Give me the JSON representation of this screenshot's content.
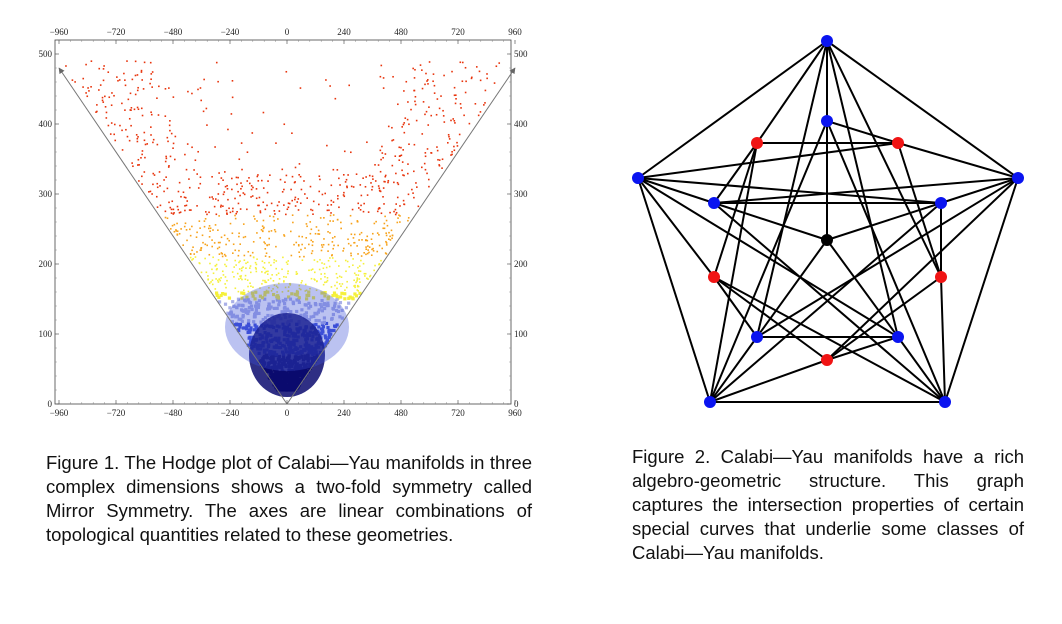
{
  "figure1": {
    "caption": "Figure 1. The Hodge plot of Calabi—Yau manifolds in three complex dimensions shows a two-fold symmetry called Mirror Symmetry. The axes are linear combinations of topological quantities related to these geometries.",
    "chart_data": {
      "type": "heatmap",
      "title": "",
      "xlabel": "",
      "ylabel": "",
      "xlim": [
        -960,
        960
      ],
      "ylim": [
        0,
        500
      ],
      "x_ticks": [
        "−960",
        "−720",
        "−480",
        "−240",
        "0",
        "240",
        "480",
        "720",
        "960"
      ],
      "y_ticks": [
        "0",
        "100",
        "200",
        "300",
        "400",
        "500"
      ],
      "x_tick_values": [
        -960,
        -720,
        -480,
        -240,
        0,
        240,
        480,
        720,
        960
      ],
      "y_tick_values": [
        0,
        100,
        200,
        300,
        400,
        500
      ],
      "mirror_axes": [
        {
          "from": [
            0,
            0
          ],
          "to": [
            -960,
            480
          ]
        },
        {
          "from": [
            0,
            0
          ],
          "to": [
            960,
            480
          ]
        }
      ],
      "density_colors": [
        "#0a0a6e",
        "#3d4fd8",
        "#aab0e8",
        "#f5f03a",
        "#f7a21a",
        "#e8340c"
      ]
    }
  },
  "figure2": {
    "caption": "Figure 2. Calabi—Yau manifolds have a rich algebro-geometric structure. This graph captures the intersection properties of certain special curves that underlie some classes of Calabi—Yau manifolds.",
    "graph": {
      "node_colors": {
        "blue": "#0a14f0",
        "red": "#f01414",
        "black": "#000000"
      },
      "nodes": [
        {
          "id": "O0",
          "color": "blue"
        },
        {
          "id": "O1",
          "color": "blue"
        },
        {
          "id": "O2",
          "color": "blue"
        },
        {
          "id": "O3",
          "color": "blue"
        },
        {
          "id": "O4",
          "color": "blue"
        },
        {
          "id": "P0",
          "color": "blue"
        },
        {
          "id": "P1",
          "color": "blue"
        },
        {
          "id": "P2",
          "color": "blue"
        },
        {
          "id": "P3",
          "color": "blue"
        },
        {
          "id": "P4",
          "color": "blue"
        },
        {
          "id": "R0",
          "color": "red"
        },
        {
          "id": "R1",
          "color": "red"
        },
        {
          "id": "R2",
          "color": "red"
        },
        {
          "id": "R3",
          "color": "red"
        },
        {
          "id": "R4",
          "color": "red"
        },
        {
          "id": "C",
          "color": "black"
        }
      ],
      "edges": [
        [
          "O0",
          "O1"
        ],
        [
          "O1",
          "O2"
        ],
        [
          "O2",
          "O3"
        ],
        [
          "O3",
          "O4"
        ],
        [
          "O4",
          "O0"
        ],
        [
          "O0",
          "P0"
        ],
        [
          "O1",
          "P1"
        ],
        [
          "O2",
          "P2"
        ],
        [
          "O3",
          "P3"
        ],
        [
          "O4",
          "P4"
        ],
        [
          "O0",
          "R1"
        ],
        [
          "O0",
          "R4"
        ],
        [
          "O1",
          "R0"
        ],
        [
          "O1",
          "R2"
        ],
        [
          "O2",
          "R1"
        ],
        [
          "O2",
          "R3"
        ],
        [
          "O3",
          "R2"
        ],
        [
          "O3",
          "R4"
        ],
        [
          "O4",
          "R3"
        ],
        [
          "O4",
          "R0"
        ],
        [
          "O0",
          "P2"
        ],
        [
          "O0",
          "P3"
        ],
        [
          "O1",
          "P3"
        ],
        [
          "O1",
          "P4"
        ],
        [
          "O2",
          "P4"
        ],
        [
          "O2",
          "P0"
        ],
        [
          "O3",
          "P0"
        ],
        [
          "O3",
          "P1"
        ],
        [
          "O4",
          "P1"
        ],
        [
          "O4",
          "P2"
        ],
        [
          "P0",
          "R0"
        ],
        [
          "P1",
          "R1"
        ],
        [
          "P2",
          "R2"
        ],
        [
          "P3",
          "R3"
        ],
        [
          "P4",
          "R4"
        ],
        [
          "P1",
          "P4"
        ],
        [
          "P2",
          "P3"
        ],
        [
          "R0",
          "R1"
        ],
        [
          "R1",
          "R2"
        ],
        [
          "R2",
          "R3"
        ],
        [
          "R3",
          "R4"
        ],
        [
          "R4",
          "R0"
        ],
        [
          "C",
          "P0"
        ],
        [
          "C",
          "P1"
        ],
        [
          "C",
          "P2"
        ],
        [
          "C",
          "P3"
        ],
        [
          "C",
          "P4"
        ]
      ]
    }
  }
}
